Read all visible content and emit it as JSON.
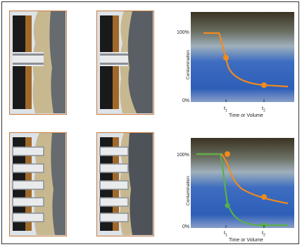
{
  "colors": {
    "panel_border": "#c8793c",
    "panel_bg": "#dde3e8",
    "casing_dark": "#1a1a1a",
    "cement": "#c8b890",
    "formation": "#555a60",
    "bronze": "#a0692a",
    "orange_curve": "#f28a1e",
    "green_curve": "#5ab04a",
    "chart_top": "#3a3322",
    "chart_blue": "#2d5fb8"
  },
  "panels": [
    {
      "name": "top-left",
      "perforations": 1,
      "cleaned": false
    },
    {
      "name": "top-right",
      "perforations": 1,
      "cleaned": true
    },
    {
      "name": "bottom-left",
      "perforations": 5,
      "cleaned": false
    },
    {
      "name": "bottom-right",
      "perforations": 5,
      "cleaned": true
    }
  ],
  "charts": [
    {
      "ylabel": "Contamination",
      "xlabel": "Time or Volume",
      "y_top": "100%",
      "y_bottom": "0%",
      "t1": "t",
      "t1_sub": "1",
      "t2": "t",
      "t2_sub": "2"
    },
    {
      "ylabel": "Contamination",
      "xlabel": "Time or Volume",
      "y_top": "100%",
      "y_bottom": "0%",
      "t1": "t",
      "t1_sub": "1",
      "t2": "t",
      "t2_sub": "2"
    }
  ]
}
